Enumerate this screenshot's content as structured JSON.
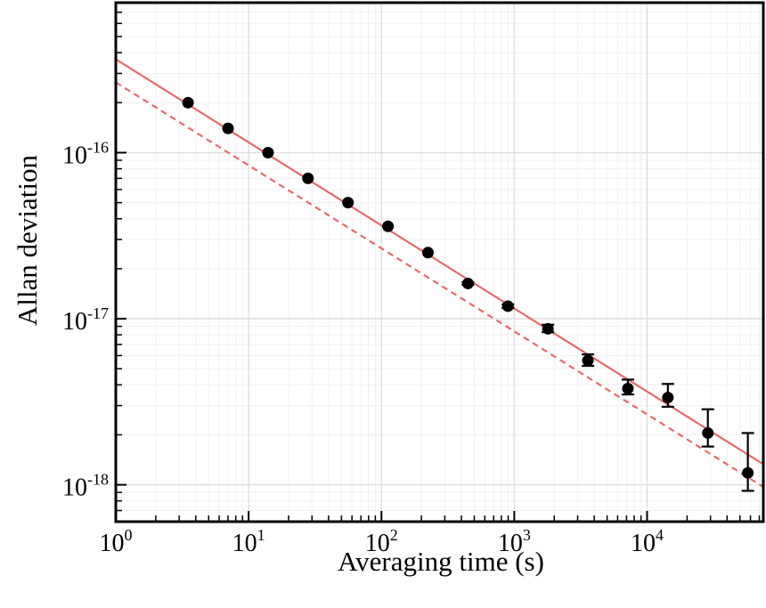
{
  "chart_data": {
    "type": "scatter",
    "xlabel": "Averaging time (s)",
    "ylabel": "Allan deviation",
    "xscale": "log",
    "yscale": "log",
    "xlim": [
      1,
      75000
    ],
    "ylim": [
      6e-19,
      8e-16
    ],
    "grid": true,
    "x_ticks": [
      {
        "value": 1,
        "base": "10",
        "exp": "0"
      },
      {
        "value": 10,
        "base": "10",
        "exp": "1"
      },
      {
        "value": 100,
        "base": "10",
        "exp": "2"
      },
      {
        "value": 1000,
        "base": "10",
        "exp": "3"
      },
      {
        "value": 10000,
        "base": "10",
        "exp": "4"
      }
    ],
    "y_ticks": [
      {
        "value": 1e-18,
        "base": "10",
        "exp": "-18"
      },
      {
        "value": 1e-17,
        "base": "10",
        "exp": "-17"
      },
      {
        "value": 1e-16,
        "base": "10",
        "exp": "-16"
      }
    ],
    "series": [
      {
        "kind": "points_with_error_bars",
        "color": "#000000",
        "x": [
          3.5,
          7,
          14,
          28,
          56,
          112,
          224,
          448,
          896,
          1792,
          3584,
          7168,
          14336,
          28672,
          57344
        ],
        "y": [
          2e-16,
          1.4e-16,
          1e-16,
          7e-17,
          5e-17,
          3.6e-17,
          2.5e-17,
          1.63e-17,
          1.19e-17,
          8.7e-18,
          5.6e-18,
          3.8e-18,
          3.35e-18,
          2.05e-18,
          1.18e-18
        ],
        "yerr_low": [
          2e-16,
          1.4e-16,
          1e-16,
          7e-17,
          5e-17,
          3.6e-17,
          2.5e-17,
          1.6e-17,
          1.16e-17,
          8.3e-18,
          5.2e-18,
          3.5e-18,
          2.95e-18,
          1.7e-18,
          9.2e-19
        ],
        "yerr_high": [
          2e-16,
          1.4e-16,
          1e-16,
          7e-17,
          5e-17,
          3.6e-17,
          2.5e-17,
          1.66e-17,
          1.22e-17,
          9.2e-18,
          6.1e-18,
          4.3e-18,
          4.05e-18,
          2.85e-18,
          2.05e-18
        ]
      },
      {
        "kind": "line",
        "style": "solid",
        "color": "#e8696b",
        "x": [
          1,
          75000
        ],
        "y": [
          3.65e-16,
          1.33e-18
        ]
      },
      {
        "kind": "line",
        "style": "dashed",
        "color": "#e8696b",
        "x": [
          1,
          75000
        ],
        "y": [
          2.65e-16,
          9.7e-19
        ]
      }
    ]
  }
}
